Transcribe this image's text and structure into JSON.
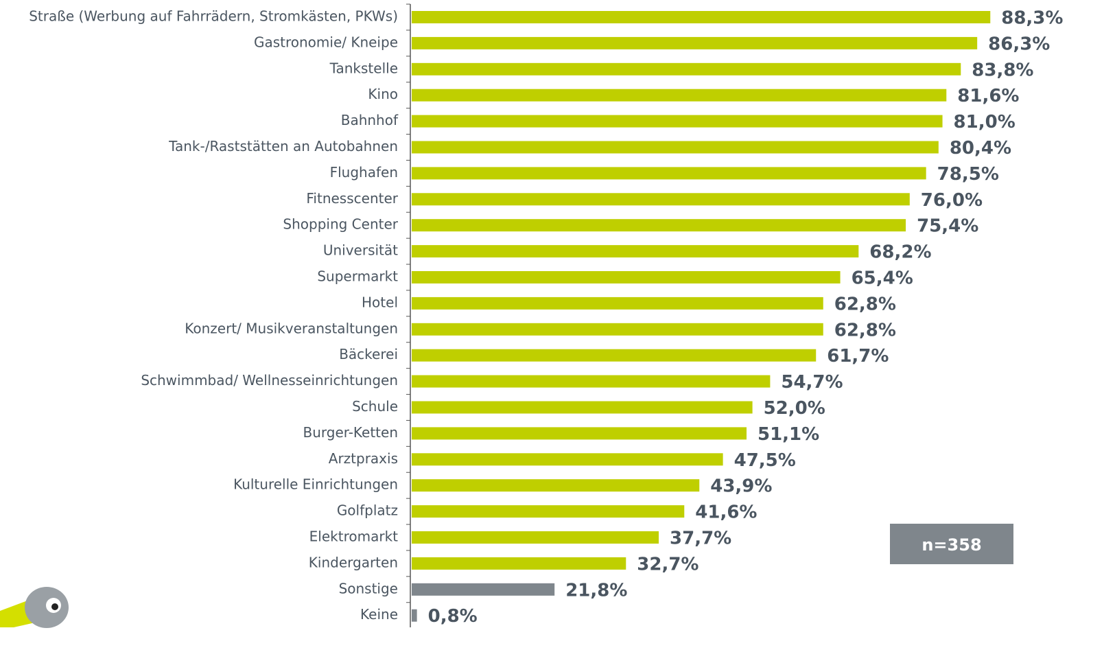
{
  "chart_data": {
    "type": "bar",
    "orientation": "horizontal",
    "categories": [
      "Straße (Werbung auf Fahrrädern, Stromkästen, PKWs)",
      "Gastronomie/ Kneipe",
      "Tankstelle",
      "Kino",
      "Bahnhof",
      "Tank-/Raststätten an Autobahnen",
      "Flughafen",
      "Fitnesscenter",
      "Shopping Center",
      "Universität",
      "Supermarkt",
      "Hotel",
      "Konzert/ Musikveranstaltungen",
      "Bäckerei",
      "Schwimmbad/ Wellnesseinrichtungen",
      "Schule",
      "Burger-Ketten",
      "Arztpraxis",
      "Kulturelle Einrichtungen",
      "Golfplatz",
      "Elektromarkt",
      "Kindergarten",
      "Sonstige",
      "Keine"
    ],
    "values": [
      88.3,
      86.3,
      83.8,
      81.6,
      81.0,
      80.4,
      78.5,
      76.0,
      75.4,
      68.2,
      65.4,
      62.8,
      62.8,
      61.7,
      54.7,
      52.0,
      51.1,
      47.5,
      43.9,
      41.6,
      37.7,
      32.7,
      21.8,
      0.8
    ],
    "value_labels": [
      "88,3%",
      "86,3%",
      "83,8%",
      "81,6%",
      "81,0%",
      "80,4%",
      "78,5%",
      "76,0%",
      "75,4%",
      "68,2%",
      "65,4%",
      "62,8%",
      "62,8%",
      "61,7%",
      "54,7%",
      "52,0%",
      "51,1%",
      "47,5%",
      "43,9%",
      "41,6%",
      "37,7%",
      "32,7%",
      "21,8%",
      "0,8%"
    ],
    "colors": [
      "#bfcf00",
      "#bfcf00",
      "#bfcf00",
      "#bfcf00",
      "#bfcf00",
      "#bfcf00",
      "#bfcf00",
      "#bfcf00",
      "#bfcf00",
      "#bfcf00",
      "#bfcf00",
      "#bfcf00",
      "#bfcf00",
      "#bfcf00",
      "#bfcf00",
      "#bfcf00",
      "#bfcf00",
      "#bfcf00",
      "#bfcf00",
      "#bfcf00",
      "#bfcf00",
      "#bfcf00",
      "#7f868c",
      "#7f868c"
    ],
    "annotation": "n=358"
  }
}
